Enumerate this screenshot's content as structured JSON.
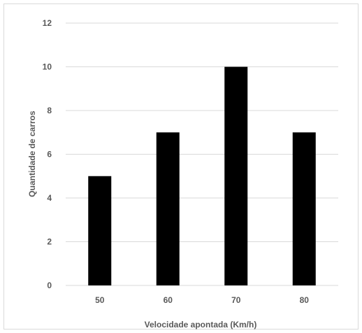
{
  "chart_data": {
    "type": "bar",
    "title": "",
    "xlabel": "Velocidade apontada (Km/h)",
    "ylabel": "Quantidade de carros",
    "categories": [
      "50",
      "60",
      "70",
      "80"
    ],
    "values": [
      5,
      7,
      10,
      7
    ],
    "ylim": [
      0,
      12
    ],
    "yticks": [
      "0",
      "2",
      "4",
      "6",
      "8",
      "10",
      "12"
    ],
    "grid": true,
    "legend": "none",
    "colors": {
      "bar": "#000000",
      "grid": "#d9d9d9",
      "text": "#595959",
      "border": "#d9d9d9"
    }
  }
}
